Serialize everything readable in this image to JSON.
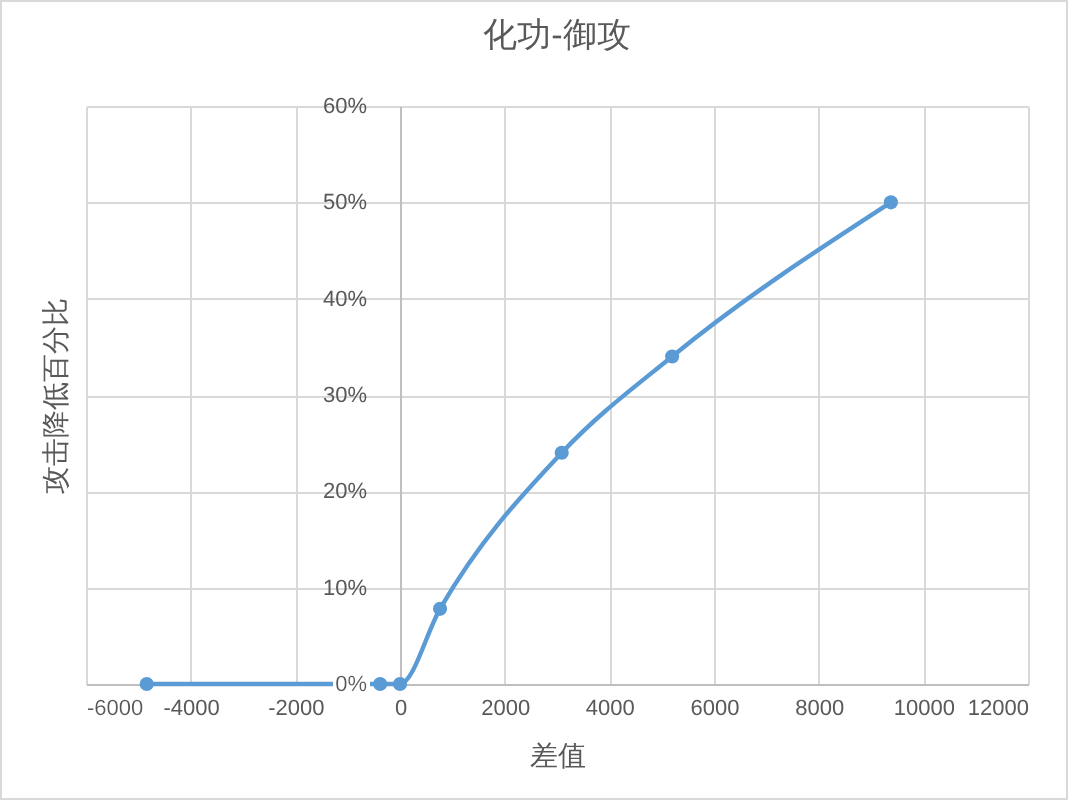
{
  "chart_data": {
    "type": "line",
    "title": "化功-御攻",
    "xlabel": "差值",
    "ylabel": "攻击降低百分比",
    "x": [
      -4840,
      -380,
      0,
      765,
      3090,
      5200,
      9380
    ],
    "series": [
      {
        "color": "#5b9bd5",
        "values": [
          0,
          0,
          0,
          0.078,
          0.24,
          0.34,
          0.5
        ]
      }
    ],
    "xlim": [
      -6000,
      12000
    ],
    "xticks": [
      -6000,
      -4000,
      -2000,
      0,
      2000,
      4000,
      6000,
      8000,
      10000,
      12000
    ],
    "ylim": [
      0,
      0.6
    ],
    "yticks": [
      {
        "value": 0,
        "label": "0%"
      },
      {
        "value": 0.1,
        "label": "10%"
      },
      {
        "value": 0.2,
        "label": "20%"
      },
      {
        "value": 0.3,
        "label": "30%"
      },
      {
        "value": 0.4,
        "label": "40%"
      },
      {
        "value": 0.5,
        "label": "50%"
      },
      {
        "value": 0.6,
        "label": "60%"
      }
    ],
    "grid": true,
    "marker": "circle",
    "line_style": "solid"
  }
}
